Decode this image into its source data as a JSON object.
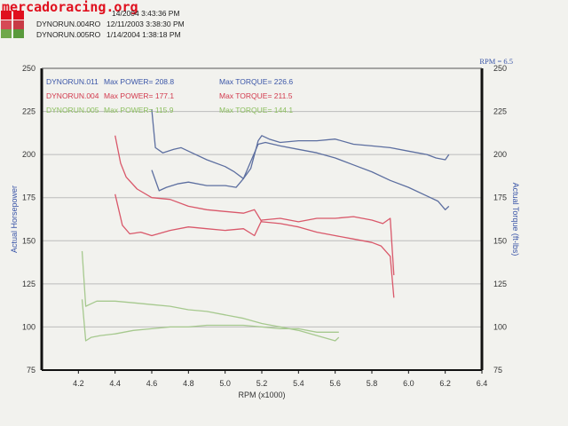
{
  "watermark": "mercadoracing.org",
  "header": {
    "runs": [
      {
        "name": "",
        "date": "",
        "first_date": "14/2004 3:43:36 PM",
        "swatch": [
          "#e0101e",
          "#e0101e"
        ]
      },
      {
        "name": "DYNORUN.004RO",
        "date": "12/11/2003 3:38:30 PM",
        "swatch": [
          "#d64a55",
          "#c83b46"
        ]
      },
      {
        "name": "DYNORUN.005RO",
        "date": "1/14/2004 1:38:18 PM",
        "swatch": [
          "#6fa84a",
          "#5a9a3c"
        ]
      }
    ]
  },
  "colors": {
    "blue": "#5d6fa0",
    "red": "#d9586a",
    "green": "#a6c98e",
    "grid": "#bcbcbc",
    "axis": "#111111",
    "blue_text": "#3b56a8",
    "red_text": "#d23a4e",
    "green_text": "#8cbf5e"
  },
  "chart_data": {
    "type": "line",
    "xlabel": "RPM (x1000)",
    "ylabel_left": "Actual Horsepower",
    "ylabel_right": "Actual Torque (ft-lbs)",
    "corner_label": "RPM = 6.5",
    "xlim": [
      4.0,
      6.4
    ],
    "ylim": [
      75,
      250
    ],
    "x_ticks": [
      "4.2",
      "4.4",
      "4.6",
      "4.8",
      "5.0",
      "5.2",
      "5.4",
      "5.6",
      "5.8",
      "6.0",
      "6.2",
      "6.4"
    ],
    "y_ticks": [
      "75",
      "100",
      "125",
      "150",
      "175",
      "200",
      "225",
      "250"
    ],
    "grid": true,
    "legend_rows": [
      {
        "run": "DYNORUN.011",
        "power_label": "Max POWER=",
        "power": "208.8",
        "torque_label": "Max TORQUE=",
        "torque": "226.6",
        "color": "blue_text"
      },
      {
        "run": "DYNORUN.004",
        "power_label": "Max POWER=",
        "power": "177.1",
        "torque_label": "Max TORQUE=",
        "torque": "211.5",
        "color": "red_text"
      },
      {
        "run": "DYNORUN.005",
        "power_label": "Max POWER=",
        "power": "115.9",
        "torque_label": "Max TORQUE=",
        "torque": "144.1",
        "color": "green_text"
      }
    ],
    "series": [
      {
        "name": "DYNORUN.011",
        "measure": "torque",
        "color": "blue",
        "x": [
          4.6,
          4.62,
          4.66,
          4.72,
          4.76,
          4.8,
          4.9,
          5.0,
          5.05,
          5.1,
          5.14,
          5.18,
          5.2,
          5.24,
          5.3,
          5.4,
          5.5,
          5.6,
          5.7,
          5.8,
          5.9,
          6.0,
          6.1,
          6.15,
          6.2,
          6.22
        ],
        "y": [
          226,
          204,
          201,
          203,
          204,
          202,
          197,
          193,
          190,
          186,
          192,
          208,
          211,
          209,
          207,
          208,
          208,
          209,
          206,
          205,
          204,
          202,
          200,
          198,
          197,
          200
        ]
      },
      {
        "name": "DYNORUN.011",
        "measure": "power",
        "color": "blue",
        "x": [
          4.6,
          4.64,
          4.68,
          4.74,
          4.8,
          4.9,
          5.0,
          5.06,
          5.1,
          5.14,
          5.18,
          5.22,
          5.3,
          5.4,
          5.5,
          5.6,
          5.7,
          5.8,
          5.9,
          6.0,
          6.1,
          6.16,
          6.2,
          6.22
        ],
        "y": [
          191,
          179,
          181,
          183,
          184,
          182,
          182,
          181,
          186,
          196,
          206,
          207,
          205,
          203,
          201,
          198,
          194,
          190,
          185,
          181,
          176,
          173,
          168,
          170
        ]
      },
      {
        "name": "DYNORUN.004",
        "measure": "torque",
        "color": "red",
        "x": [
          4.4,
          4.43,
          4.46,
          4.52,
          4.6,
          4.7,
          4.8,
          4.9,
          5.0,
          5.1,
          5.16,
          5.2,
          5.3,
          5.4,
          5.5,
          5.6,
          5.7,
          5.8,
          5.85,
          5.9,
          5.92
        ],
        "y": [
          211,
          195,
          187,
          180,
          175,
          174,
          170,
          168,
          167,
          166,
          168,
          161,
          160,
          158,
          155,
          153,
          151,
          149,
          147,
          141,
          117
        ]
      },
      {
        "name": "DYNORUN.004",
        "measure": "power",
        "color": "red",
        "x": [
          4.4,
          4.44,
          4.48,
          4.54,
          4.6,
          4.7,
          4.8,
          4.9,
          5.0,
          5.1,
          5.16,
          5.2,
          5.3,
          5.4,
          5.5,
          5.6,
          5.7,
          5.8,
          5.86,
          5.9,
          5.92
        ],
        "y": [
          177,
          159,
          154,
          155,
          153,
          156,
          158,
          157,
          156,
          157,
          153,
          162,
          163,
          161,
          163,
          163,
          164,
          162,
          160,
          163,
          130
        ]
      },
      {
        "name": "DYNORUN.005",
        "measure": "torque",
        "color": "green",
        "x": [
          4.22,
          4.24,
          4.26,
          4.3,
          4.4,
          4.5,
          4.6,
          4.7,
          4.8,
          4.9,
          5.0,
          5.1,
          5.2,
          5.3,
          5.4,
          5.5,
          5.6,
          5.62
        ],
        "y": [
          144,
          112,
          113,
          115,
          115,
          114,
          113,
          112,
          110,
          109,
          107,
          105,
          102,
          100,
          98,
          95,
          92,
          94
        ]
      },
      {
        "name": "DYNORUN.005",
        "measure": "power",
        "color": "green",
        "x": [
          4.22,
          4.24,
          4.27,
          4.32,
          4.4,
          4.5,
          4.6,
          4.7,
          4.8,
          4.9,
          5.0,
          5.1,
          5.2,
          5.3,
          5.4,
          5.5,
          5.62
        ],
        "y": [
          116,
          92,
          94,
          95,
          96,
          98,
          99,
          100,
          100,
          101,
          101,
          101,
          100,
          99,
          99,
          97,
          97
        ]
      }
    ]
  }
}
